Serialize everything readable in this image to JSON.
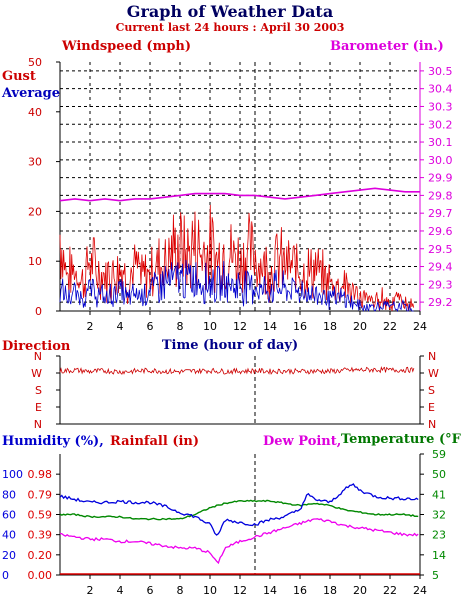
{
  "header": {
    "title": "Graph of Weather Data",
    "subtitle": "Current last 24 hours : April 30 2003"
  },
  "colors": {
    "gust": "#dd0000",
    "average": "#0000cc",
    "barometer": "#dd00dd",
    "direction": "#cc0000",
    "humidity": "#0000dd",
    "rainfall": "#dd0000",
    "dewpoint": "#ee00ee",
    "temperature": "#008800",
    "axis": "#000000",
    "grid": "#000000"
  },
  "chart_data": [
    {
      "id": "wind",
      "type": "line",
      "left_label": "Windspeed (mph)",
      "right_label": "Barometer (in.)",
      "legend": [
        "Gust",
        "Average"
      ],
      "xlabel": "Time (hour of day)",
      "xlim": [
        0,
        24
      ],
      "x_ticks": [
        2,
        4,
        6,
        8,
        10,
        12,
        14,
        16,
        18,
        20,
        22,
        24
      ],
      "ylim": [
        0,
        50
      ],
      "y_ticks": [
        0,
        10,
        20,
        30,
        40,
        50
      ],
      "y2lim": [
        29.15,
        30.55
      ],
      "y2_ticks": [
        "29.2",
        "29.3",
        "29.4",
        "29.5",
        "29.6",
        "29.7",
        "29.8",
        "29.9",
        "30.0",
        "30.1",
        "30.2",
        "30.3",
        "30.4",
        "30.5"
      ],
      "grid": true,
      "marker_hour": 13,
      "series": [
        {
          "name": "Gust",
          "axis": "left",
          "x": [
            0,
            0.5,
            1,
            1.5,
            2,
            2.5,
            3,
            3.5,
            4,
            4.5,
            5,
            5.5,
            6,
            6.5,
            7,
            7.5,
            8,
            8.5,
            9,
            9.5,
            10,
            10.5,
            11,
            11.5,
            12,
            12.5,
            13,
            13.5,
            14,
            14.5,
            15,
            15.5,
            16,
            16.5,
            17,
            17.5,
            18,
            18.5,
            19,
            19.5,
            20,
            20.5,
            21,
            21.5,
            22,
            22.5,
            23,
            23.5
          ],
          "values": [
            18,
            8,
            10,
            7,
            12,
            9,
            8,
            9,
            11,
            7,
            10,
            8,
            9,
            11,
            12,
            14,
            15,
            13,
            16,
            14,
            15,
            12,
            14,
            13,
            12,
            14,
            13,
            11,
            10,
            12,
            11,
            10,
            11,
            9,
            10,
            8,
            7,
            6,
            7,
            4,
            3,
            3,
            2,
            3,
            2,
            3,
            2,
            1
          ]
        },
        {
          "name": "Average",
          "axis": "left",
          "x": [
            0,
            0.5,
            1,
            1.5,
            2,
            2.5,
            3,
            3.5,
            4,
            4.5,
            5,
            5.5,
            6,
            6.5,
            7,
            7.5,
            8,
            8.5,
            9,
            9.5,
            10,
            10.5,
            11,
            11.5,
            12,
            12.5,
            13,
            13.5,
            14,
            14.5,
            15,
            15.5,
            16,
            16.5,
            17,
            17.5,
            18,
            18.5,
            19,
            19.5,
            20,
            20.5,
            21,
            21.5,
            22,
            22.5,
            23,
            23.5
          ],
          "values": [
            5,
            3,
            4,
            3,
            5,
            4,
            3,
            4,
            5,
            3,
            4,
            4,
            5,
            6,
            7,
            7,
            8,
            7,
            8,
            7,
            7,
            6,
            7,
            6,
            6,
            6,
            6,
            5,
            5,
            6,
            5,
            5,
            5,
            4,
            4,
            4,
            3,
            3,
            3,
            2,
            1,
            1,
            1,
            1,
            1,
            1,
            1,
            0
          ]
        },
        {
          "name": "Barometer",
          "axis": "right",
          "x": [
            0,
            1,
            2,
            3,
            4,
            5,
            6,
            7,
            8,
            9,
            10,
            11,
            12,
            13,
            14,
            15,
            16,
            17,
            18,
            19,
            20,
            21,
            22,
            23,
            24
          ],
          "values": [
            29.77,
            29.78,
            29.77,
            29.78,
            29.77,
            29.78,
            29.78,
            29.79,
            29.8,
            29.81,
            29.81,
            29.81,
            29.8,
            29.8,
            29.79,
            29.78,
            29.79,
            29.8,
            29.81,
            29.82,
            29.83,
            29.84,
            29.83,
            29.82,
            29.82
          ]
        }
      ]
    },
    {
      "id": "direction",
      "type": "line",
      "label": "Direction",
      "xlim": [
        0,
        24
      ],
      "y_ticks": [
        "N",
        "W",
        "S",
        "E",
        "N"
      ],
      "series": [
        {
          "name": "Direction",
          "x": [
            0,
            1,
            2,
            3,
            4,
            5,
            6,
            7,
            8,
            9,
            10,
            11,
            12,
            13,
            14,
            15,
            16,
            17,
            18,
            19,
            20,
            21,
            22,
            23,
            24
          ],
          "values": [
            280,
            285,
            278,
            282,
            276,
            280,
            284,
            279,
            277,
            281,
            283,
            278,
            280,
            282,
            279,
            281,
            278,
            280,
            279,
            284,
            286,
            288,
            285,
            287,
            284
          ]
        }
      ]
    },
    {
      "id": "humidity",
      "type": "line",
      "legend": [
        "Humidity (%),",
        "Rainfall (in)",
        "Dew Point,",
        "Temperature (°F)"
      ],
      "xlim": [
        0,
        24
      ],
      "x_ticks": [
        2,
        4,
        6,
        8,
        10,
        12,
        14,
        16,
        18,
        20,
        22,
        24
      ],
      "humidity_ticks": [
        "0",
        "20",
        "40",
        "60",
        "80",
        "100"
      ],
      "rain_ticks": [
        "0.00",
        "0.20",
        "0.39",
        "0.59",
        "0.79",
        "0.98"
      ],
      "temp_ticks": [
        "5",
        "14",
        "23",
        "32",
        "41",
        "50",
        "59"
      ],
      "marker_hour": 13,
      "series": [
        {
          "name": "Humidity (%)",
          "axis": "humidity",
          "x": [
            0,
            1,
            2,
            3,
            4,
            5,
            6,
            7,
            8,
            9,
            10,
            10.5,
            11,
            12,
            13,
            14,
            15,
            16,
            16.5,
            17,
            18,
            19,
            19.5,
            20,
            21,
            22,
            23,
            24
          ],
          "values": [
            78,
            75,
            72,
            72,
            73,
            72,
            72,
            68,
            62,
            58,
            50,
            38,
            55,
            52,
            50,
            55,
            58,
            65,
            80,
            75,
            72,
            85,
            90,
            84,
            78,
            76,
            76,
            75
          ]
        },
        {
          "name": "Dew Point",
          "axis": "temp",
          "x": [
            0,
            1,
            2,
            3,
            4,
            5,
            6,
            7,
            8,
            9,
            10,
            10.5,
            11,
            12,
            13,
            14,
            15,
            16,
            17,
            18,
            19,
            20,
            21,
            22,
            23,
            24
          ],
          "values": [
            23,
            22,
            21,
            21,
            20,
            20,
            19,
            18,
            17,
            17,
            15,
            10,
            17,
            20,
            22,
            24,
            26,
            28,
            30,
            29,
            27,
            26,
            25,
            24,
            23,
            23
          ]
        },
        {
          "name": "Temperature (°F)",
          "axis": "temp",
          "x": [
            0,
            1,
            2,
            3,
            4,
            5,
            6,
            7,
            8,
            9,
            10,
            11,
            12,
            13,
            14,
            15,
            16,
            17,
            18,
            19,
            20,
            21,
            22,
            23,
            24
          ],
          "values": [
            32,
            32,
            31,
            31,
            31,
            30,
            30,
            30,
            30,
            32,
            35,
            37,
            38,
            38,
            38,
            37,
            36,
            37,
            36,
            34,
            33,
            32,
            32,
            32,
            31
          ]
        },
        {
          "name": "Rainfall (in)",
          "axis": "rain",
          "x": [
            0,
            24
          ],
          "values": [
            0,
            0
          ]
        }
      ]
    }
  ]
}
